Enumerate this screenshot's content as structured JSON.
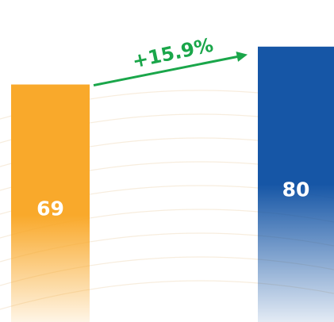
{
  "chart_data": {
    "type": "bar",
    "categories": [
      null,
      null
    ],
    "values": [
      69,
      80
    ],
    "colors": [
      "#f9a92b",
      "#1656a6"
    ],
    "annotation": "+15.9%",
    "annotation_color": "#1aa64a"
  }
}
